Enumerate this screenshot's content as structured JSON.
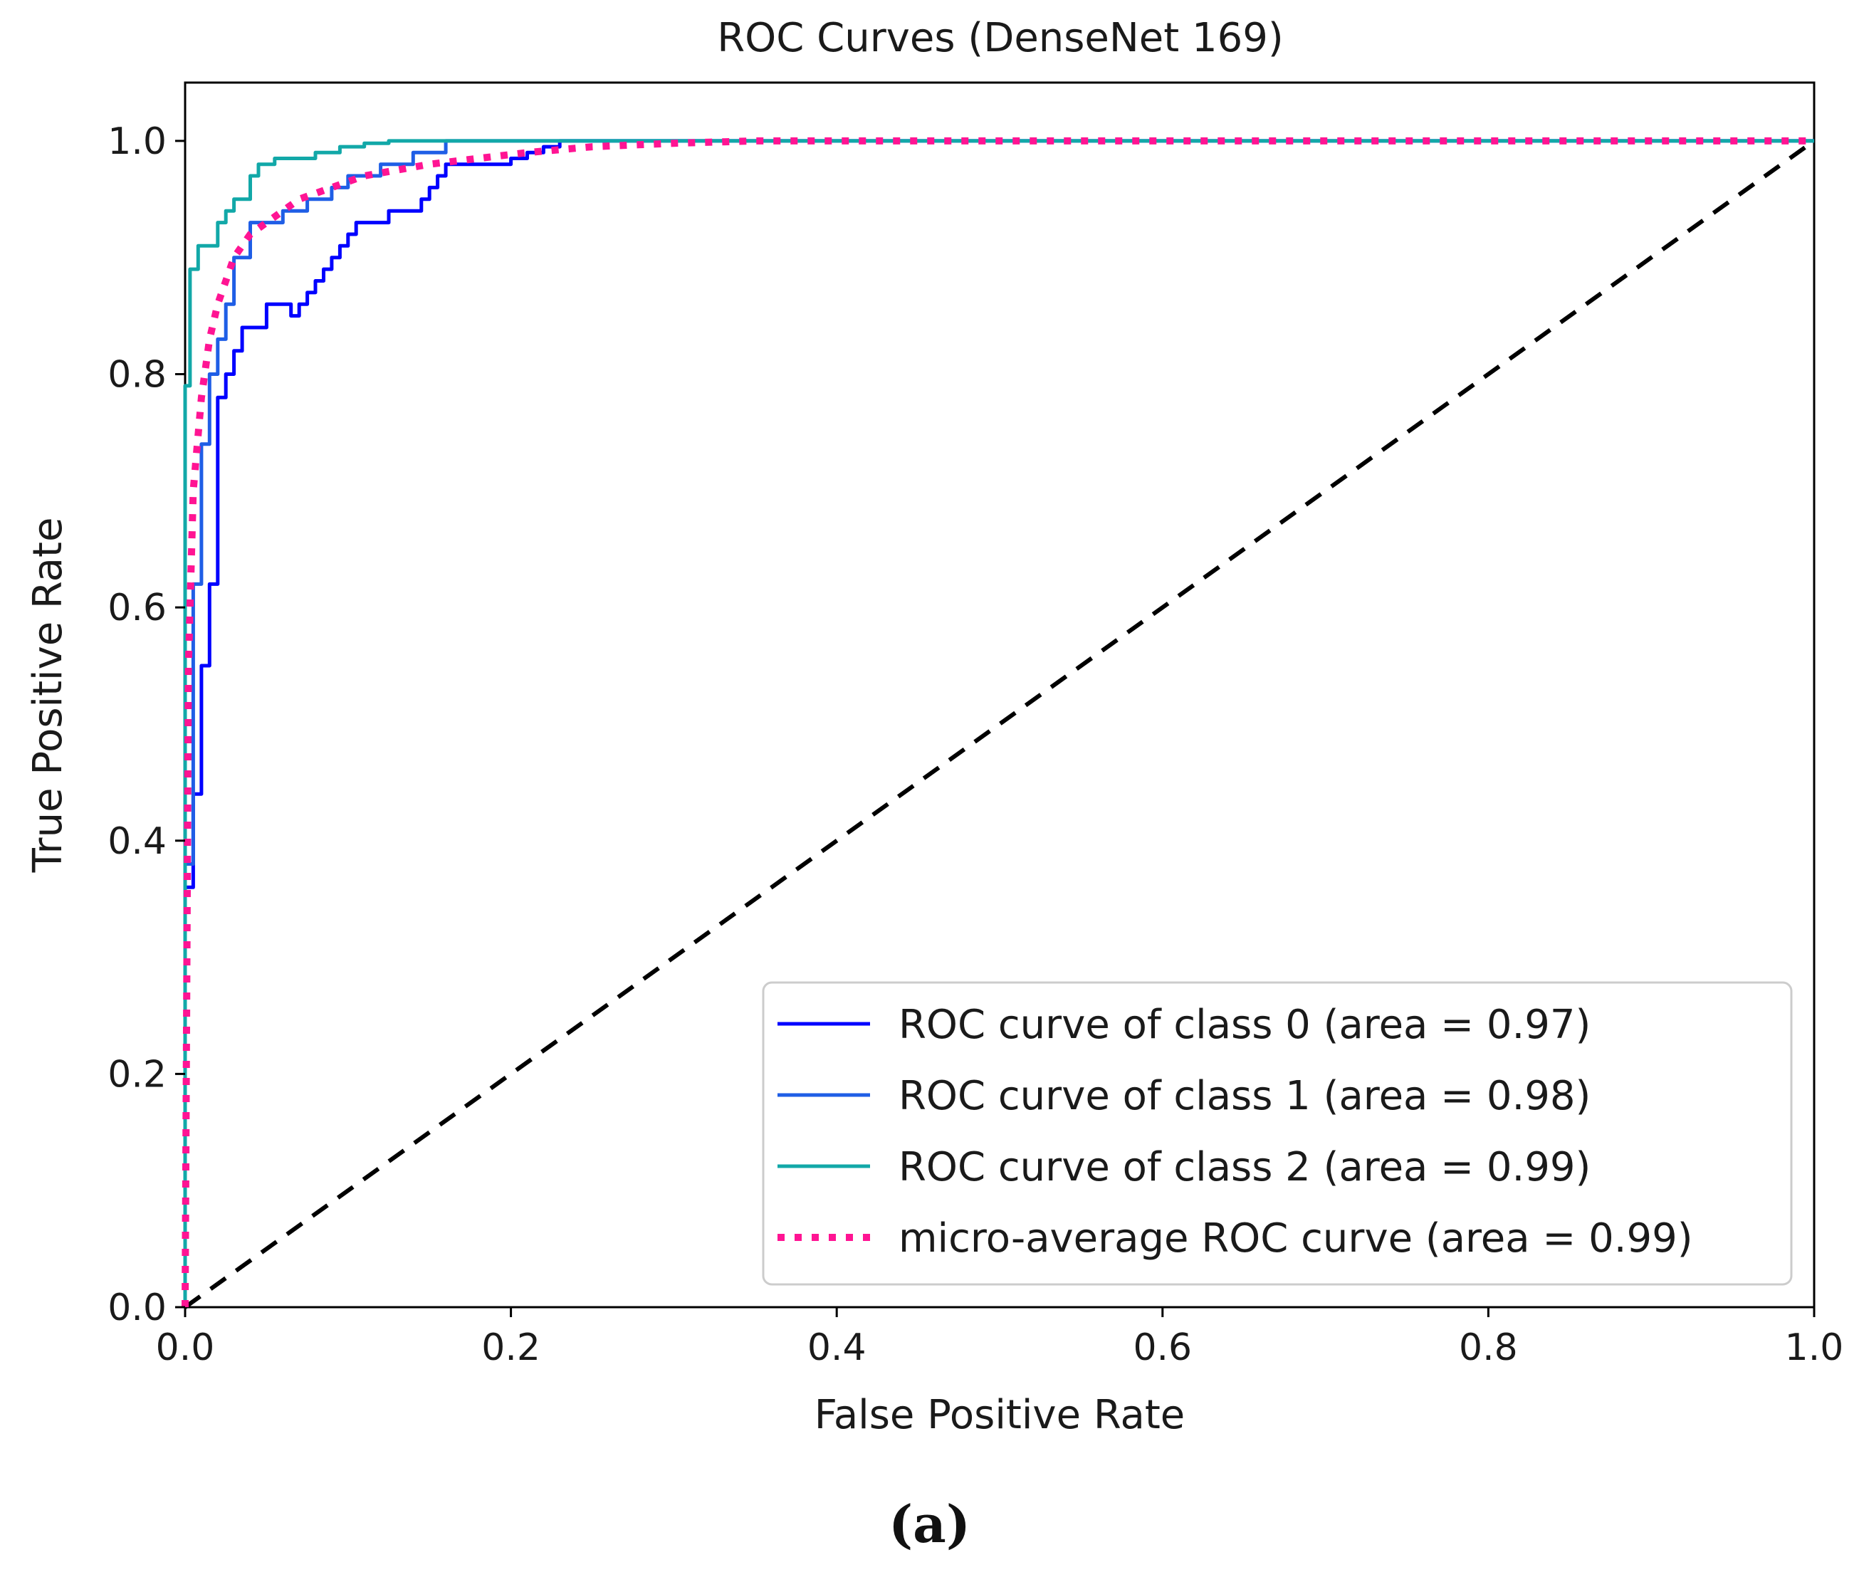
{
  "chart_data": {
    "type": "line",
    "title": "ROC Curves (DenseNet 169)",
    "xlabel": "False Positive Rate",
    "ylabel": "True Positive Rate",
    "xlim": [
      0.0,
      1.0
    ],
    "ylim": [
      0.0,
      1.05
    ],
    "xticks": [
      "0.0",
      "0.2",
      "0.4",
      "0.6",
      "0.8",
      "1.0"
    ],
    "yticks": [
      "0.0",
      "0.2",
      "0.4",
      "0.6",
      "0.8",
      "1.0"
    ],
    "grid": false,
    "legend_position": "lower-right",
    "series": [
      {
        "name": "ROC curve of class 0 (area = 0.97)",
        "color": "#0000ff",
        "style": "solid",
        "x": [
          0.0,
          0.0,
          0.005,
          0.005,
          0.01,
          0.01,
          0.015,
          0.015,
          0.02,
          0.02,
          0.025,
          0.025,
          0.03,
          0.03,
          0.035,
          0.035,
          0.05,
          0.05,
          0.065,
          0.065,
          0.07,
          0.07,
          0.075,
          0.075,
          0.08,
          0.08,
          0.085,
          0.085,
          0.09,
          0.09,
          0.095,
          0.095,
          0.1,
          0.1,
          0.105,
          0.105,
          0.125,
          0.125,
          0.145,
          0.145,
          0.15,
          0.15,
          0.155,
          0.155,
          0.16,
          0.16,
          0.2,
          0.2,
          0.21,
          0.21,
          0.22,
          0.22,
          0.23,
          0.23,
          0.24,
          0.24,
          0.245,
          0.245,
          0.255,
          0.255,
          0.26,
          0.26,
          0.28,
          0.28,
          0.29,
          0.29,
          0.32,
          0.32,
          0.325,
          0.325,
          0.42,
          0.42,
          1.0
        ],
        "y": [
          0.0,
          0.36,
          0.36,
          0.44,
          0.44,
          0.55,
          0.55,
          0.62,
          0.62,
          0.78,
          0.78,
          0.8,
          0.8,
          0.82,
          0.82,
          0.84,
          0.84,
          0.86,
          0.86,
          0.85,
          0.85,
          0.86,
          0.86,
          0.87,
          0.87,
          0.88,
          0.88,
          0.89,
          0.89,
          0.9,
          0.9,
          0.91,
          0.91,
          0.92,
          0.92,
          0.93,
          0.93,
          0.94,
          0.94,
          0.95,
          0.95,
          0.96,
          0.96,
          0.97,
          0.97,
          0.98,
          0.98,
          0.985,
          0.985,
          0.99,
          0.99,
          0.995,
          0.995,
          1.0,
          1.0,
          1.0,
          1.0,
          1.0,
          1.0,
          1.0,
          1.0,
          1.0,
          1.0,
          1.0,
          1.0,
          1.0,
          1.0,
          1.0,
          1.0,
          1.0,
          1.0,
          1.0,
          1.0
        ]
      },
      {
        "name": "ROC curve of class 1 (area = 0.98)",
        "color": "#1f5ee6",
        "style": "solid",
        "x": [
          0.0,
          0.0,
          0.005,
          0.005,
          0.01,
          0.01,
          0.015,
          0.015,
          0.02,
          0.02,
          0.025,
          0.025,
          0.03,
          0.03,
          0.04,
          0.04,
          0.06,
          0.06,
          0.075,
          0.075,
          0.09,
          0.09,
          0.1,
          0.1,
          0.12,
          0.12,
          0.14,
          0.14,
          0.16,
          0.16,
          0.175,
          0.175,
          1.0
        ],
        "y": [
          0.0,
          0.38,
          0.38,
          0.62,
          0.62,
          0.74,
          0.74,
          0.8,
          0.8,
          0.83,
          0.83,
          0.86,
          0.86,
          0.9,
          0.9,
          0.93,
          0.93,
          0.94,
          0.94,
          0.95,
          0.95,
          0.96,
          0.96,
          0.97,
          0.97,
          0.98,
          0.98,
          0.99,
          0.99,
          1.0,
          1.0,
          1.0,
          1.0
        ]
      },
      {
        "name": "ROC curve of class 2 (area = 0.99)",
        "color": "#12a8a8",
        "style": "solid",
        "x": [
          0.0,
          0.0,
          0.003,
          0.003,
          0.008,
          0.008,
          0.02,
          0.02,
          0.025,
          0.025,
          0.03,
          0.03,
          0.04,
          0.04,
          0.045,
          0.045,
          0.055,
          0.055,
          0.08,
          0.08,
          0.095,
          0.095,
          0.11,
          0.11,
          0.125,
          0.125,
          0.14,
          0.14,
          0.15,
          1.0
        ],
        "y": [
          0.0,
          0.79,
          0.79,
          0.89,
          0.89,
          0.91,
          0.91,
          0.93,
          0.93,
          0.94,
          0.94,
          0.95,
          0.95,
          0.97,
          0.97,
          0.98,
          0.98,
          0.985,
          0.985,
          0.99,
          0.99,
          0.995,
          0.995,
          0.998,
          0.998,
          1.0,
          1.0,
          1.0,
          1.0,
          1.0
        ]
      },
      {
        "name": "micro-average ROC curve (area = 0.99)",
        "color": "#ff1493",
        "style": "dotted",
        "x": [
          0.0,
          0.002,
          0.005,
          0.01,
          0.015,
          0.02,
          0.03,
          0.04,
          0.05,
          0.07,
          0.09,
          0.11,
          0.13,
          0.15,
          0.18,
          0.21,
          0.25,
          0.3,
          0.35,
          0.42,
          1.0
        ],
        "y": [
          0.0,
          0.55,
          0.7,
          0.78,
          0.83,
          0.86,
          0.9,
          0.92,
          0.93,
          0.95,
          0.96,
          0.97,
          0.975,
          0.98,
          0.985,
          0.99,
          0.995,
          0.998,
          1.0,
          1.0,
          1.0
        ]
      },
      {
        "name": "chance",
        "color": "#000000",
        "style": "dashed",
        "in_legend": false,
        "x": [
          0.0,
          1.0
        ],
        "y": [
          0.0,
          1.0
        ]
      }
    ]
  },
  "caption": "(a)"
}
